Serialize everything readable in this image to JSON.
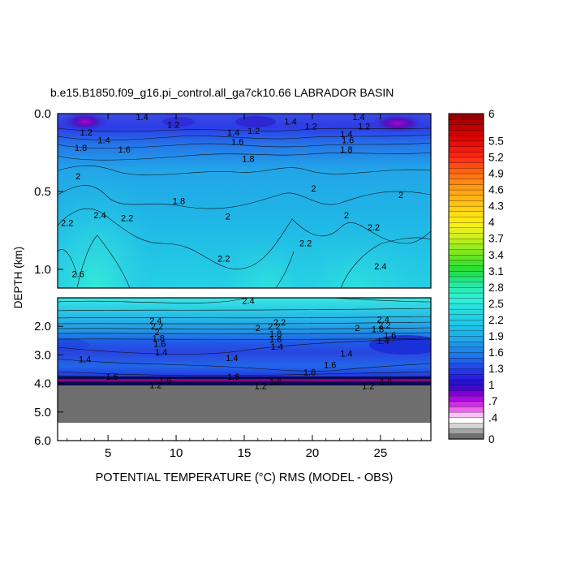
{
  "chart_data": {
    "type": "heatmap",
    "title": "b.e15.B1850.f09_g16.pi_control.all_ga7ck10.66 LABRADOR BASIN",
    "xlabel": "POTENTIAL TEMPERATURE (°C) RMS (MODEL - OBS)",
    "ylabel": "DEPTH (km)",
    "x_ticks": [
      "5",
      "10",
      "15",
      "20",
      "25"
    ],
    "y_ticks_upper": [
      "0.0",
      "0.5",
      "1.0"
    ],
    "y_ticks_lower": [
      "2.0",
      "3.0",
      "4.0",
      "5.0",
      "6.0"
    ],
    "xlim": [
      1.3,
      28.7
    ],
    "ylim_upper": [
      0.0,
      1.12
    ],
    "ylim_lower": [
      1.0,
      6.0
    ],
    "colorbar": {
      "labels": [
        "0",
        ".4",
        ".7",
        "1",
        "1.3",
        "1.6",
        "1.9",
        "2.2",
        "2.5",
        "2.8",
        "3.1",
        "3.4",
        "3.7",
        "4",
        "4.3",
        "4.6",
        "4.9",
        "5.2",
        "5.5",
        "6"
      ],
      "levels": [
        0,
        0.1,
        0.2,
        0.3,
        0.4,
        0.5,
        0.6,
        0.7,
        0.8,
        0.9,
        1.0,
        1.1,
        1.2,
        1.3,
        1.4,
        1.5,
        1.6,
        1.7,
        1.8,
        1.9,
        2.0,
        2.1,
        2.2,
        2.3,
        2.4,
        2.5,
        2.6,
        2.7,
        2.8,
        2.9,
        3.0,
        3.1,
        3.2,
        3.3,
        3.4,
        3.5,
        3.6,
        3.7,
        3.8,
        3.9,
        4.0,
        4.1,
        4.2,
        4.3,
        4.4,
        4.5,
        4.6,
        4.7,
        4.8,
        4.9,
        5.0,
        5.1,
        5.2,
        5.3,
        5.4,
        5.5,
        5.6,
        5.7,
        5.8,
        5.9,
        6.0
      ]
    },
    "contour_labels_upper": [
      {
        "x": 7.5,
        "y": 0.02,
        "text": "1.4"
      },
      {
        "x": 9.8,
        "y": 0.07,
        "text": "1.2"
      },
      {
        "x": 3.4,
        "y": 0.12,
        "text": "1.2"
      },
      {
        "x": 4.7,
        "y": 0.17,
        "text": "1.4"
      },
      {
        "x": 14.2,
        "y": 0.12,
        "text": "1.4"
      },
      {
        "x": 15.7,
        "y": 0.11,
        "text": "1.2"
      },
      {
        "x": 14.5,
        "y": 0.18,
        "text": "1.6"
      },
      {
        "x": 18.4,
        "y": 0.05,
        "text": "1.4"
      },
      {
        "x": 19.9,
        "y": 0.08,
        "text": "1.2"
      },
      {
        "x": 22.5,
        "y": 0.13,
        "text": "1.4"
      },
      {
        "x": 22.6,
        "y": 0.17,
        "text": "1.6"
      },
      {
        "x": 23.4,
        "y": 0.02,
        "text": "1.4"
      },
      {
        "x": 23.8,
        "y": 0.08,
        "text": "1.2"
      },
      {
        "x": 3.0,
        "y": 0.22,
        "text": "1.8"
      },
      {
        "x": 6.2,
        "y": 0.23,
        "text": "1.6"
      },
      {
        "x": 15.3,
        "y": 0.29,
        "text": "1.8"
      },
      {
        "x": 22.5,
        "y": 0.23,
        "text": "1.8"
      },
      {
        "x": 2.8,
        "y": 0.4,
        "text": "2"
      },
      {
        "x": 10.2,
        "y": 0.56,
        "text": "1.8"
      },
      {
        "x": 13.8,
        "y": 0.66,
        "text": "2"
      },
      {
        "x": 20.1,
        "y": 0.48,
        "text": "2"
      },
      {
        "x": 22.5,
        "y": 0.65,
        "text": "2"
      },
      {
        "x": 26.5,
        "y": 0.52,
        "text": "2"
      },
      {
        "x": 2.0,
        "y": 0.7,
        "text": "2.2"
      },
      {
        "x": 4.4,
        "y": 0.65,
        "text": "2.4"
      },
      {
        "x": 6.4,
        "y": 0.67,
        "text": "2.2"
      },
      {
        "x": 13.5,
        "y": 0.93,
        "text": "2.2"
      },
      {
        "x": 19.5,
        "y": 0.83,
        "text": "2.2"
      },
      {
        "x": 24.5,
        "y": 0.73,
        "text": "2.2"
      },
      {
        "x": 25.0,
        "y": 0.98,
        "text": "2.4"
      },
      {
        "x": 2.8,
        "y": 1.03,
        "text": "2.6"
      }
    ],
    "contour_labels_lower": [
      {
        "x": 15.3,
        "y": 1.1,
        "text": "2.4"
      },
      {
        "x": 8.5,
        "y": 1.8,
        "text": "2.4"
      },
      {
        "x": 8.6,
        "y": 2.0,
        "text": "2.2"
      },
      {
        "x": 8.6,
        "y": 2.2,
        "text": "2"
      },
      {
        "x": 8.7,
        "y": 2.4,
        "text": "1.8"
      },
      {
        "x": 8.8,
        "y": 2.6,
        "text": "1.6"
      },
      {
        "x": 8.9,
        "y": 2.9,
        "text": "1.4"
      },
      {
        "x": 17.6,
        "y": 1.85,
        "text": "2.2"
      },
      {
        "x": 16.0,
        "y": 2.05,
        "text": "2"
      },
      {
        "x": 17.2,
        "y": 2.0,
        "text": "2.2"
      },
      {
        "x": 17.3,
        "y": 2.25,
        "text": "1.8"
      },
      {
        "x": 17.3,
        "y": 2.45,
        "text": "1.6"
      },
      {
        "x": 17.4,
        "y": 2.7,
        "text": "1.4"
      },
      {
        "x": 25.2,
        "y": 1.75,
        "text": "2.4"
      },
      {
        "x": 25.3,
        "y": 1.95,
        "text": "2.2"
      },
      {
        "x": 24.8,
        "y": 2.1,
        "text": "1.8"
      },
      {
        "x": 25.7,
        "y": 2.3,
        "text": "1.6"
      },
      {
        "x": 25.2,
        "y": 2.5,
        "text": "1.4"
      },
      {
        "x": 23.3,
        "y": 2.05,
        "text": "2"
      },
      {
        "x": 3.3,
        "y": 3.15,
        "text": "1.4"
      },
      {
        "x": 14.1,
        "y": 3.1,
        "text": "1.4"
      },
      {
        "x": 22.5,
        "y": 2.95,
        "text": "1.4"
      },
      {
        "x": 21.3,
        "y": 3.35,
        "text": "1.6"
      },
      {
        "x": 19.8,
        "y": 3.6,
        "text": "1.6"
      },
      {
        "x": 5.3,
        "y": 3.75,
        "text": "1.6"
      },
      {
        "x": 14.2,
        "y": 3.75,
        "text": "1.6"
      },
      {
        "x": 9.2,
        "y": 3.9,
        "text": "1.6"
      },
      {
        "x": 17.3,
        "y": 3.92,
        "text": "1.6"
      },
      {
        "x": 25.4,
        "y": 3.92,
        "text": "1.6"
      },
      {
        "x": 8.5,
        "y": 4.05,
        "text": "1.2"
      },
      {
        "x": 16.2,
        "y": 4.08,
        "text": "1.2"
      },
      {
        "x": 24.1,
        "y": 4.08,
        "text": "1.2"
      }
    ]
  }
}
